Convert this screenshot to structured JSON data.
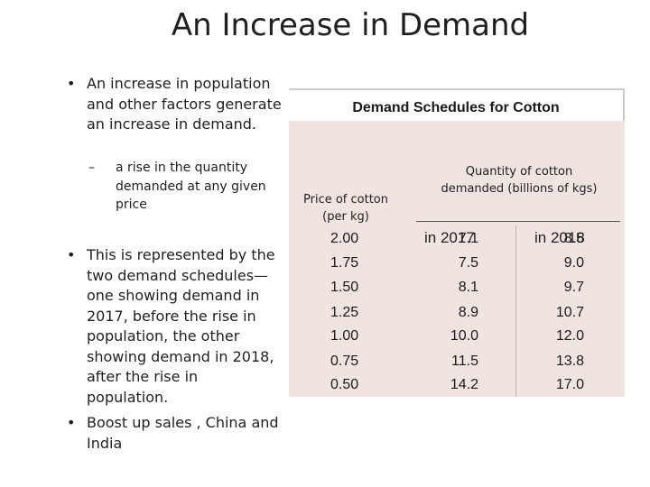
{
  "title": "An Increase in Demand",
  "bullets": {
    "b1": "An increase in population and other factors generate an increase in demand.",
    "b1_sub": "a rise in the quantity demanded at any given price",
    "b2": "This is represented by the two demand schedules—one showing demand in 2017, before the rise in population, the other showing demand in 2018, after the rise in population.",
    "b3": "Boost up sales , China and India"
  },
  "table": {
    "caption": "Demand Schedules for Cotton",
    "price_header": "Price of cotton (per kg)",
    "qty_header": "Quantity of cotton demanded (billions of kgs)",
    "year1": "in 2017",
    "year2": "in 2018",
    "rows": [
      {
        "price": "2.00",
        "q2017": "7.1",
        "q2018": "8.5"
      },
      {
        "price": "1.75",
        "q2017": "7.5",
        "q2018": "9.0"
      },
      {
        "price": "1.50",
        "q2017": "8.1",
        "q2018": "9.7"
      },
      {
        "price": "1.25",
        "q2017": "8.9",
        "q2018": "10.7"
      },
      {
        "price": "1.00",
        "q2017": "10.0",
        "q2018": "12.0"
      },
      {
        "price": "0.75",
        "q2017": "11.5",
        "q2018": "13.8"
      },
      {
        "price": "0.50",
        "q2017": "14.2",
        "q2018": "17.0"
      }
    ]
  }
}
